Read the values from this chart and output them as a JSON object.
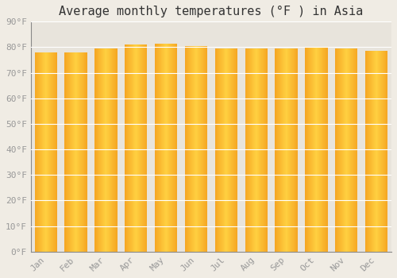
{
  "title": "Average monthly temperatures (°F ) in Asia",
  "months": [
    "Jan",
    "Feb",
    "Mar",
    "Apr",
    "May",
    "Jun",
    "Jul",
    "Aug",
    "Sep",
    "Oct",
    "Nov",
    "Dec"
  ],
  "values": [
    78,
    78,
    79.5,
    81,
    81.5,
    80.5,
    79.5,
    79.5,
    79.5,
    80,
    79.5,
    78.5
  ],
  "ylim": [
    0,
    90
  ],
  "yticks": [
    0,
    10,
    20,
    30,
    40,
    50,
    60,
    70,
    80,
    90
  ],
  "bar_color_left": "#F5A623",
  "bar_color_center": "#FFD040",
  "background_color": "#f0ece4",
  "plot_bg_color": "#e8e4dc",
  "grid_color": "#ffffff",
  "title_fontsize": 11,
  "tick_fontsize": 8,
  "title_font": "monospace",
  "tick_font": "monospace",
  "tick_color": "#999999",
  "bar_width": 0.75,
  "n_grad_segments": 60
}
